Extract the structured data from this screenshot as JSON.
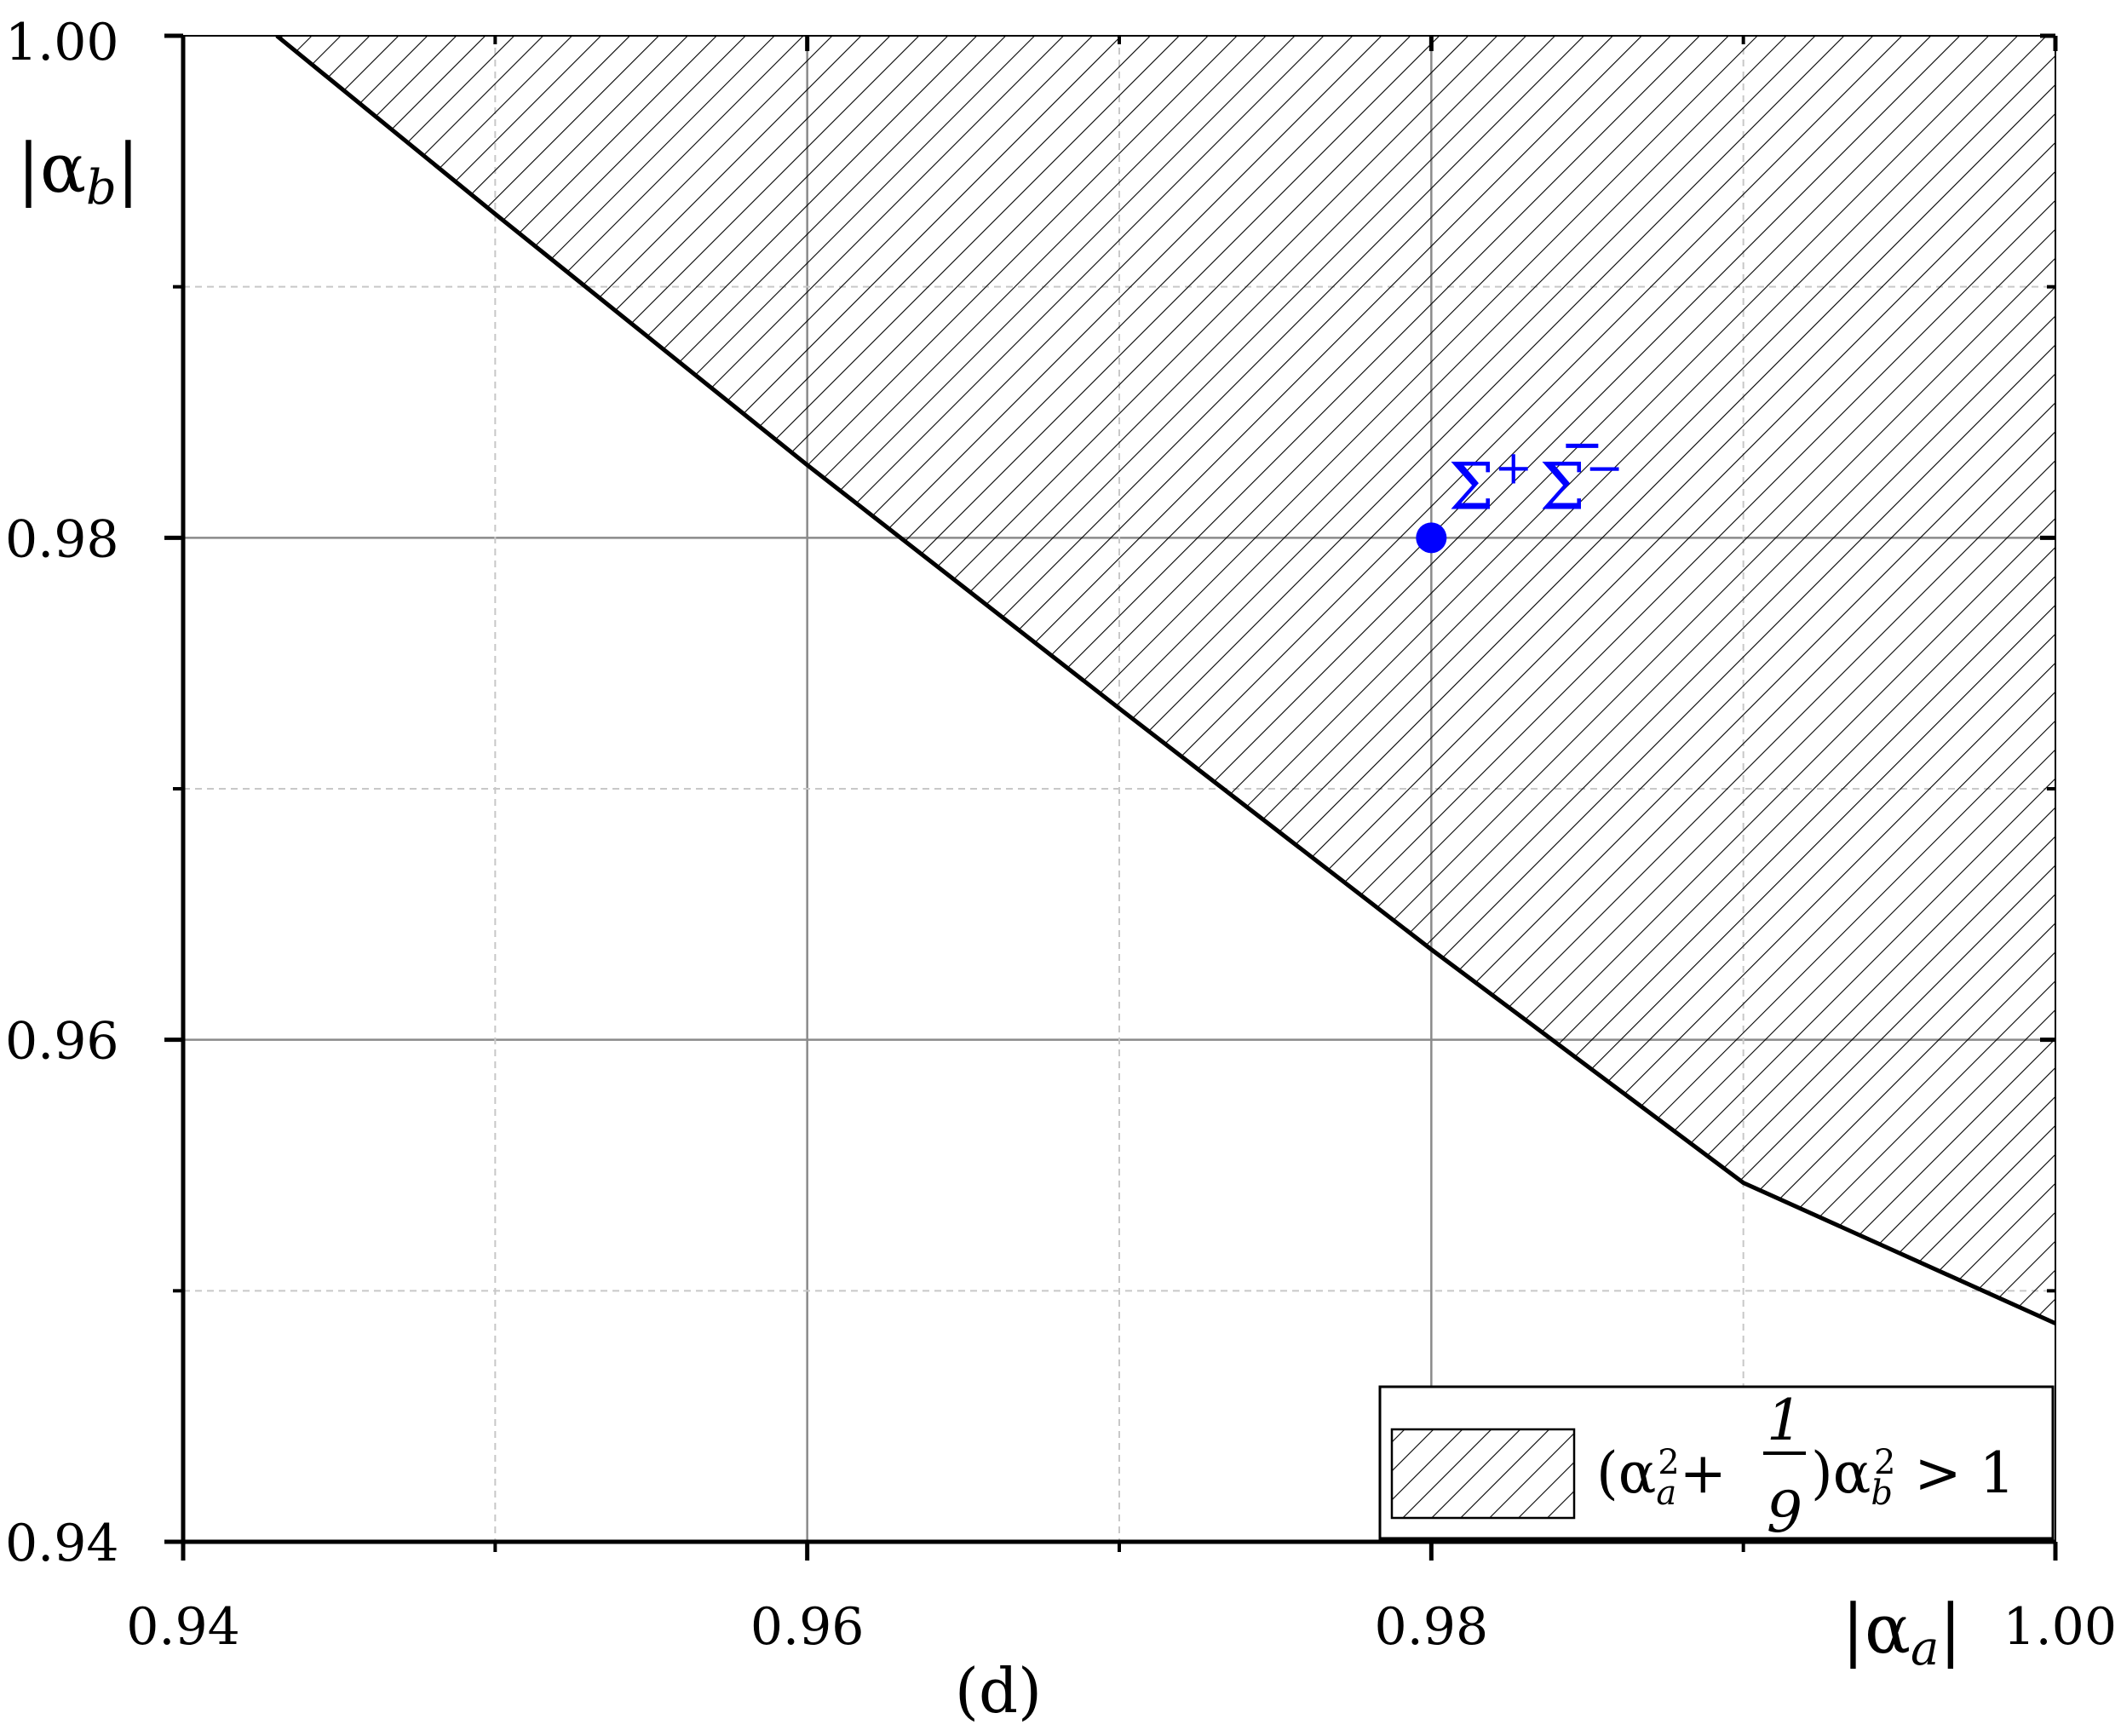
{
  "chart_data": {
    "type": "area",
    "panel_label": "(d)",
    "xlabel": "|αa|",
    "ylabel": "|αb|",
    "xlim": [
      0.94,
      1.0
    ],
    "ylim": [
      0.94,
      1.0
    ],
    "x_ticks": [
      "0.94",
      "0.96",
      "0.98",
      "1.00"
    ],
    "y_ticks": [
      "0.94",
      "0.96",
      "0.98",
      "1.00"
    ],
    "grid": true,
    "region": {
      "name": "(α_a^2 + 1/9) α_b^2 > 1",
      "boundary": {
        "x": [
          0.943,
          0.95,
          0.96,
          0.97,
          0.98,
          0.99,
          1.0
        ],
        "y": [
          1.0,
          0.9929,
          0.9829,
          0.9732,
          0.9636,
          0.9543,
          0.9487
        ]
      },
      "fill": "hatched",
      "side": "above"
    },
    "point": {
      "label": "Σ+Σ̄−",
      "x": 0.98,
      "y": 0.98,
      "color": "#0000ff"
    },
    "legend": {
      "position": "bottom-right",
      "entries": [
        "(α_a^2 + 1/9) α_b^2 > 1"
      ]
    }
  },
  "labels": {
    "x_ticks": [
      "0.94",
      "0.96",
      "0.98",
      "1.00"
    ],
    "y_ticks": [
      "0.94",
      "0.96",
      "0.98",
      "1.00"
    ],
    "xlabel_main": "|α",
    "xlabel_sub": "a",
    "ylabel_main": "|α",
    "ylabel_sub": "b",
    "panel": "(d)",
    "point_main": "Σ",
    "point_sup1": "+",
    "point_bar": "Σ",
    "point_sup2": "−",
    "legend_open": "(α",
    "legend_sub_a": "a",
    "legend_sup_2": "2",
    "legend_plus": "+",
    "legend_num": "1",
    "legend_den": "9",
    "legend_close": ")α",
    "legend_sub_b": "b",
    "legend_gt": "> 1"
  }
}
